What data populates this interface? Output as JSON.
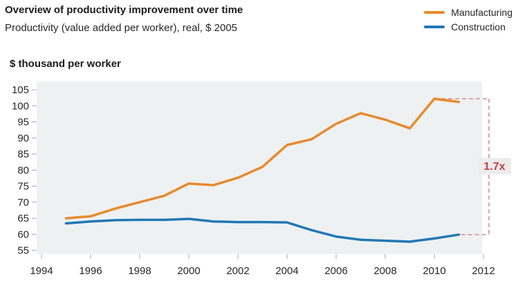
{
  "header": {
    "title": "Overview of productivity improvement over time",
    "subtitle": "Productivity (value added per worker), real, $ 2005"
  },
  "chart_data": {
    "type": "line",
    "title": "Overview of productivity improvement over time",
    "subtitle": "Productivity (value added per worker), real, $ 2005",
    "ylabel": "$ thousand per worker",
    "xlabel": "",
    "x": [
      1995,
      1996,
      1997,
      1998,
      1999,
      2000,
      2001,
      2002,
      2003,
      2004,
      2005,
      2006,
      2007,
      2008,
      2009,
      2010,
      2011
    ],
    "series": [
      {
        "name": "Manufacturing",
        "color": "#e68a2e",
        "values": [
          65.0,
          65.6,
          68.0,
          70.0,
          72.0,
          75.8,
          75.3,
          77.6,
          81.0,
          87.8,
          89.6,
          94.4,
          97.7,
          95.7,
          93.0,
          102.2,
          101.2
        ]
      },
      {
        "name": "Construction",
        "color": "#2278b5",
        "values": [
          63.4,
          64.0,
          64.4,
          64.5,
          64.5,
          64.8,
          64.0,
          63.8,
          63.8,
          63.7,
          61.3,
          59.3,
          58.3,
          58.0,
          57.7,
          58.7,
          59.9
        ]
      }
    ],
    "ylim": [
      55,
      105
    ],
    "yticks": [
      55,
      60,
      65,
      70,
      75,
      80,
      85,
      90,
      95,
      100,
      105
    ],
    "xticks": [
      1994,
      1996,
      1998,
      2000,
      2002,
      2004,
      2006,
      2008,
      2010,
      2012
    ],
    "grid": false,
    "legend_position": "top-right",
    "plot_bg": "#eef1f2",
    "tick_color": "#a8a8a8",
    "tick_label_color": "#262626",
    "annotation": {
      "label": "1.7x",
      "text_color": "#c53e43",
      "line_color": "#d98b8b",
      "box_color": "#ececec",
      "top_value": 102.2,
      "top_from_year": 2010,
      "bottom_value": 59.9,
      "bottom_from_year": 2011
    }
  }
}
